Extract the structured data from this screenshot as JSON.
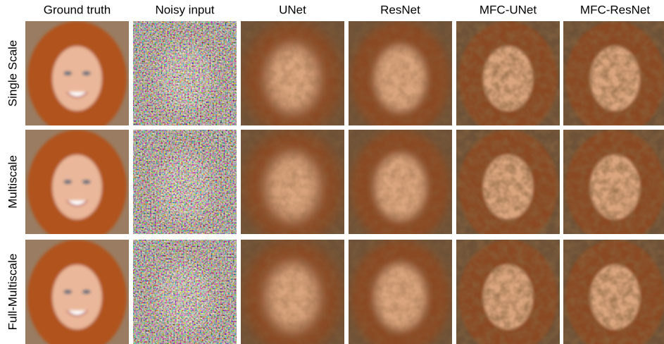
{
  "columns": [
    "Ground truth",
    "Noisy input",
    "UNet",
    "ResNet",
    "MFC-UNet",
    "MFC-ResNet"
  ],
  "rows": [
    "Single Scale",
    "Multiscale",
    "Full-Multiscale"
  ]
}
